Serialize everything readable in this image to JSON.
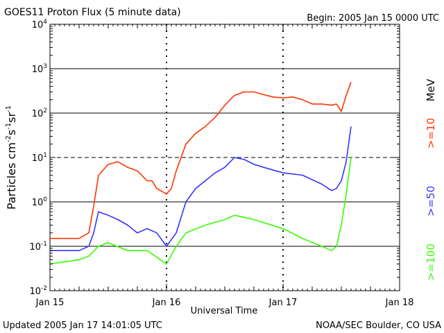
{
  "header": {
    "title": "GOES11 Proton Flux (5 minute data)",
    "begin": "Begin: 2005 Jan 15 0000 UTC"
  },
  "footer": {
    "updated": "Updated 2005 Jan 17 14:01:05 UTC",
    "credit": "NOAA/SEC Boulder, CO USA"
  },
  "chart_data": {
    "type": "line",
    "title": "GOES11 Proton Flux (5 minute data)",
    "xlabel": "Universal Time",
    "ylabel": "Particles cm-2 s-1 sr-1",
    "y_scale": "log",
    "ylim": [
      0.01,
      10000
    ],
    "y_ticks": [
      "10-2",
      "10-1",
      "100",
      "101",
      "102",
      "103",
      "104"
    ],
    "x_ticks": [
      "Jan 15",
      "Jan 16",
      "Jan 17",
      "Jan 18"
    ],
    "xlim": [
      "2005-01-15 00:00",
      "2005-01-18 00:00"
    ],
    "reference_lines": [
      {
        "value": 1000,
        "style": "solid"
      },
      {
        "value": 100,
        "style": "solid"
      },
      {
        "value": 10,
        "style": "dashed"
      },
      {
        "value": 1,
        "style": "solid"
      },
      {
        "value": 0.1,
        "style": "solid"
      }
    ],
    "right_labels": {
      "unit": "MeV",
      "items": [
        {
          "text": ">=10",
          "color": "#ff3300"
        },
        {
          "text": ">=50",
          "color": "#3333ff"
        },
        {
          "text": ">=100",
          "color": "#33ff00"
        }
      ]
    },
    "series": [
      {
        "name": ">=10 MeV",
        "color": "#ff3300",
        "x": [
          "2005-01-15 00:00",
          "2005-01-15 03:00",
          "2005-01-15 06:00",
          "2005-01-15 08:00",
          "2005-01-15 09:00",
          "2005-01-15 10:00",
          "2005-01-15 12:00",
          "2005-01-15 14:00",
          "2005-01-15 16:00",
          "2005-01-15 18:00",
          "2005-01-15 20:00",
          "2005-01-15 21:00",
          "2005-01-15 22:00",
          "2005-01-16 00:00",
          "2005-01-16 01:00",
          "2005-01-16 02:00",
          "2005-01-16 04:00",
          "2005-01-16 06:00",
          "2005-01-16 08:00",
          "2005-01-16 10:00",
          "2005-01-16 12:00",
          "2005-01-16 14:00",
          "2005-01-16 16:00",
          "2005-01-16 18:00",
          "2005-01-16 20:00",
          "2005-01-16 22:00",
          "2005-01-17 00:00",
          "2005-01-17 02:00",
          "2005-01-17 04:00",
          "2005-01-17 06:00",
          "2005-01-17 08:00",
          "2005-01-17 10:00",
          "2005-01-17 11:00",
          "2005-01-17 12:00",
          "2005-01-17 13:00",
          "2005-01-17 14:00"
        ],
        "y": [
          0.15,
          0.15,
          0.15,
          0.2,
          0.8,
          4,
          7,
          8,
          6,
          5,
          3,
          3,
          2,
          1.5,
          2,
          5,
          20,
          35,
          50,
          80,
          150,
          250,
          300,
          300,
          260,
          230,
          220,
          230,
          200,
          160,
          160,
          150,
          160,
          110,
          250,
          500
        ]
      },
      {
        "name": ">=50 MeV",
        "color": "#3333ff",
        "x": [
          "2005-01-15 00:00",
          "2005-01-15 06:00",
          "2005-01-15 08:00",
          "2005-01-15 09:00",
          "2005-01-15 10:00",
          "2005-01-15 12:00",
          "2005-01-15 14:00",
          "2005-01-15 16:00",
          "2005-01-15 18:00",
          "2005-01-15 20:00",
          "2005-01-15 22:00",
          "2005-01-16 00:00",
          "2005-01-16 02:00",
          "2005-01-16 04:00",
          "2005-01-16 06:00",
          "2005-01-16 08:00",
          "2005-01-16 10:00",
          "2005-01-16 12:00",
          "2005-01-16 14:00",
          "2005-01-16 16:00",
          "2005-01-16 18:00",
          "2005-01-16 20:00",
          "2005-01-17 00:00",
          "2005-01-17 04:00",
          "2005-01-17 08:00",
          "2005-01-17 10:00",
          "2005-01-17 11:00",
          "2005-01-17 12:00",
          "2005-01-17 13:00",
          "2005-01-17 14:00"
        ],
        "y": [
          0.08,
          0.08,
          0.1,
          0.2,
          0.6,
          0.5,
          0.4,
          0.3,
          0.2,
          0.25,
          0.2,
          0.1,
          0.2,
          1.0,
          2.0,
          3.0,
          4.5,
          6,
          10,
          9,
          7,
          6,
          4.5,
          4,
          2.5,
          1.8,
          2,
          3,
          8,
          50
        ]
      },
      {
        "name": ">=100 MeV",
        "color": "#33ff00",
        "x": [
          "2005-01-15 00:00",
          "2005-01-15 06:00",
          "2005-01-15 08:00",
          "2005-01-15 10:00",
          "2005-01-15 12:00",
          "2005-01-15 16:00",
          "2005-01-15 20:00",
          "2005-01-16 00:00",
          "2005-01-16 02:00",
          "2005-01-16 04:00",
          "2005-01-16 08:00",
          "2005-01-16 12:00",
          "2005-01-16 14:00",
          "2005-01-16 18:00",
          "2005-01-17 00:00",
          "2005-01-17 04:00",
          "2005-01-17 08:00",
          "2005-01-17 10:00",
          "2005-01-17 11:00",
          "2005-01-17 12:00",
          "2005-01-17 13:00",
          "2005-01-17 14:00"
        ],
        "y": [
          0.04,
          0.05,
          0.06,
          0.1,
          0.12,
          0.08,
          0.08,
          0.04,
          0.1,
          0.2,
          0.3,
          0.4,
          0.5,
          0.4,
          0.25,
          0.15,
          0.1,
          0.08,
          0.1,
          0.3,
          1.5,
          10
        ]
      }
    ]
  }
}
